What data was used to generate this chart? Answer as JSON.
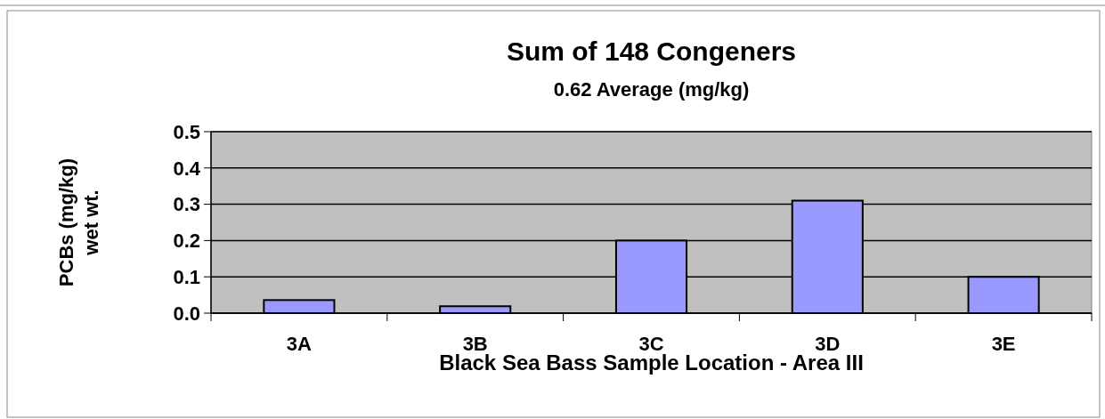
{
  "chart_data": {
    "type": "bar",
    "title": "Sum of 148 Congeners",
    "subtitle": "0.62 Average  (mg/kg)",
    "xlabel": "Black Sea Bass Sample Location - Area III",
    "ylabel": "PCBs (mg/kg)\nwet wt.",
    "categories": [
      "3A",
      "3B",
      "3C",
      "3D",
      "3E"
    ],
    "values": [
      0.036,
      0.019,
      0.2,
      0.31,
      0.1
    ],
    "color": "#9999ff",
    "ylim": [
      0,
      0.5
    ],
    "yticks": [
      {
        "value": 0,
        "label": "0.0"
      },
      {
        "value": 0.1,
        "label": "0.1"
      },
      {
        "value": 0.2,
        "label": "0.2"
      },
      {
        "value": 0.3,
        "label": "0.3"
      },
      {
        "value": 0.4,
        "label": "0.4"
      },
      {
        "value": 0.5,
        "label": "0.5"
      }
    ],
    "grid": "y"
  }
}
